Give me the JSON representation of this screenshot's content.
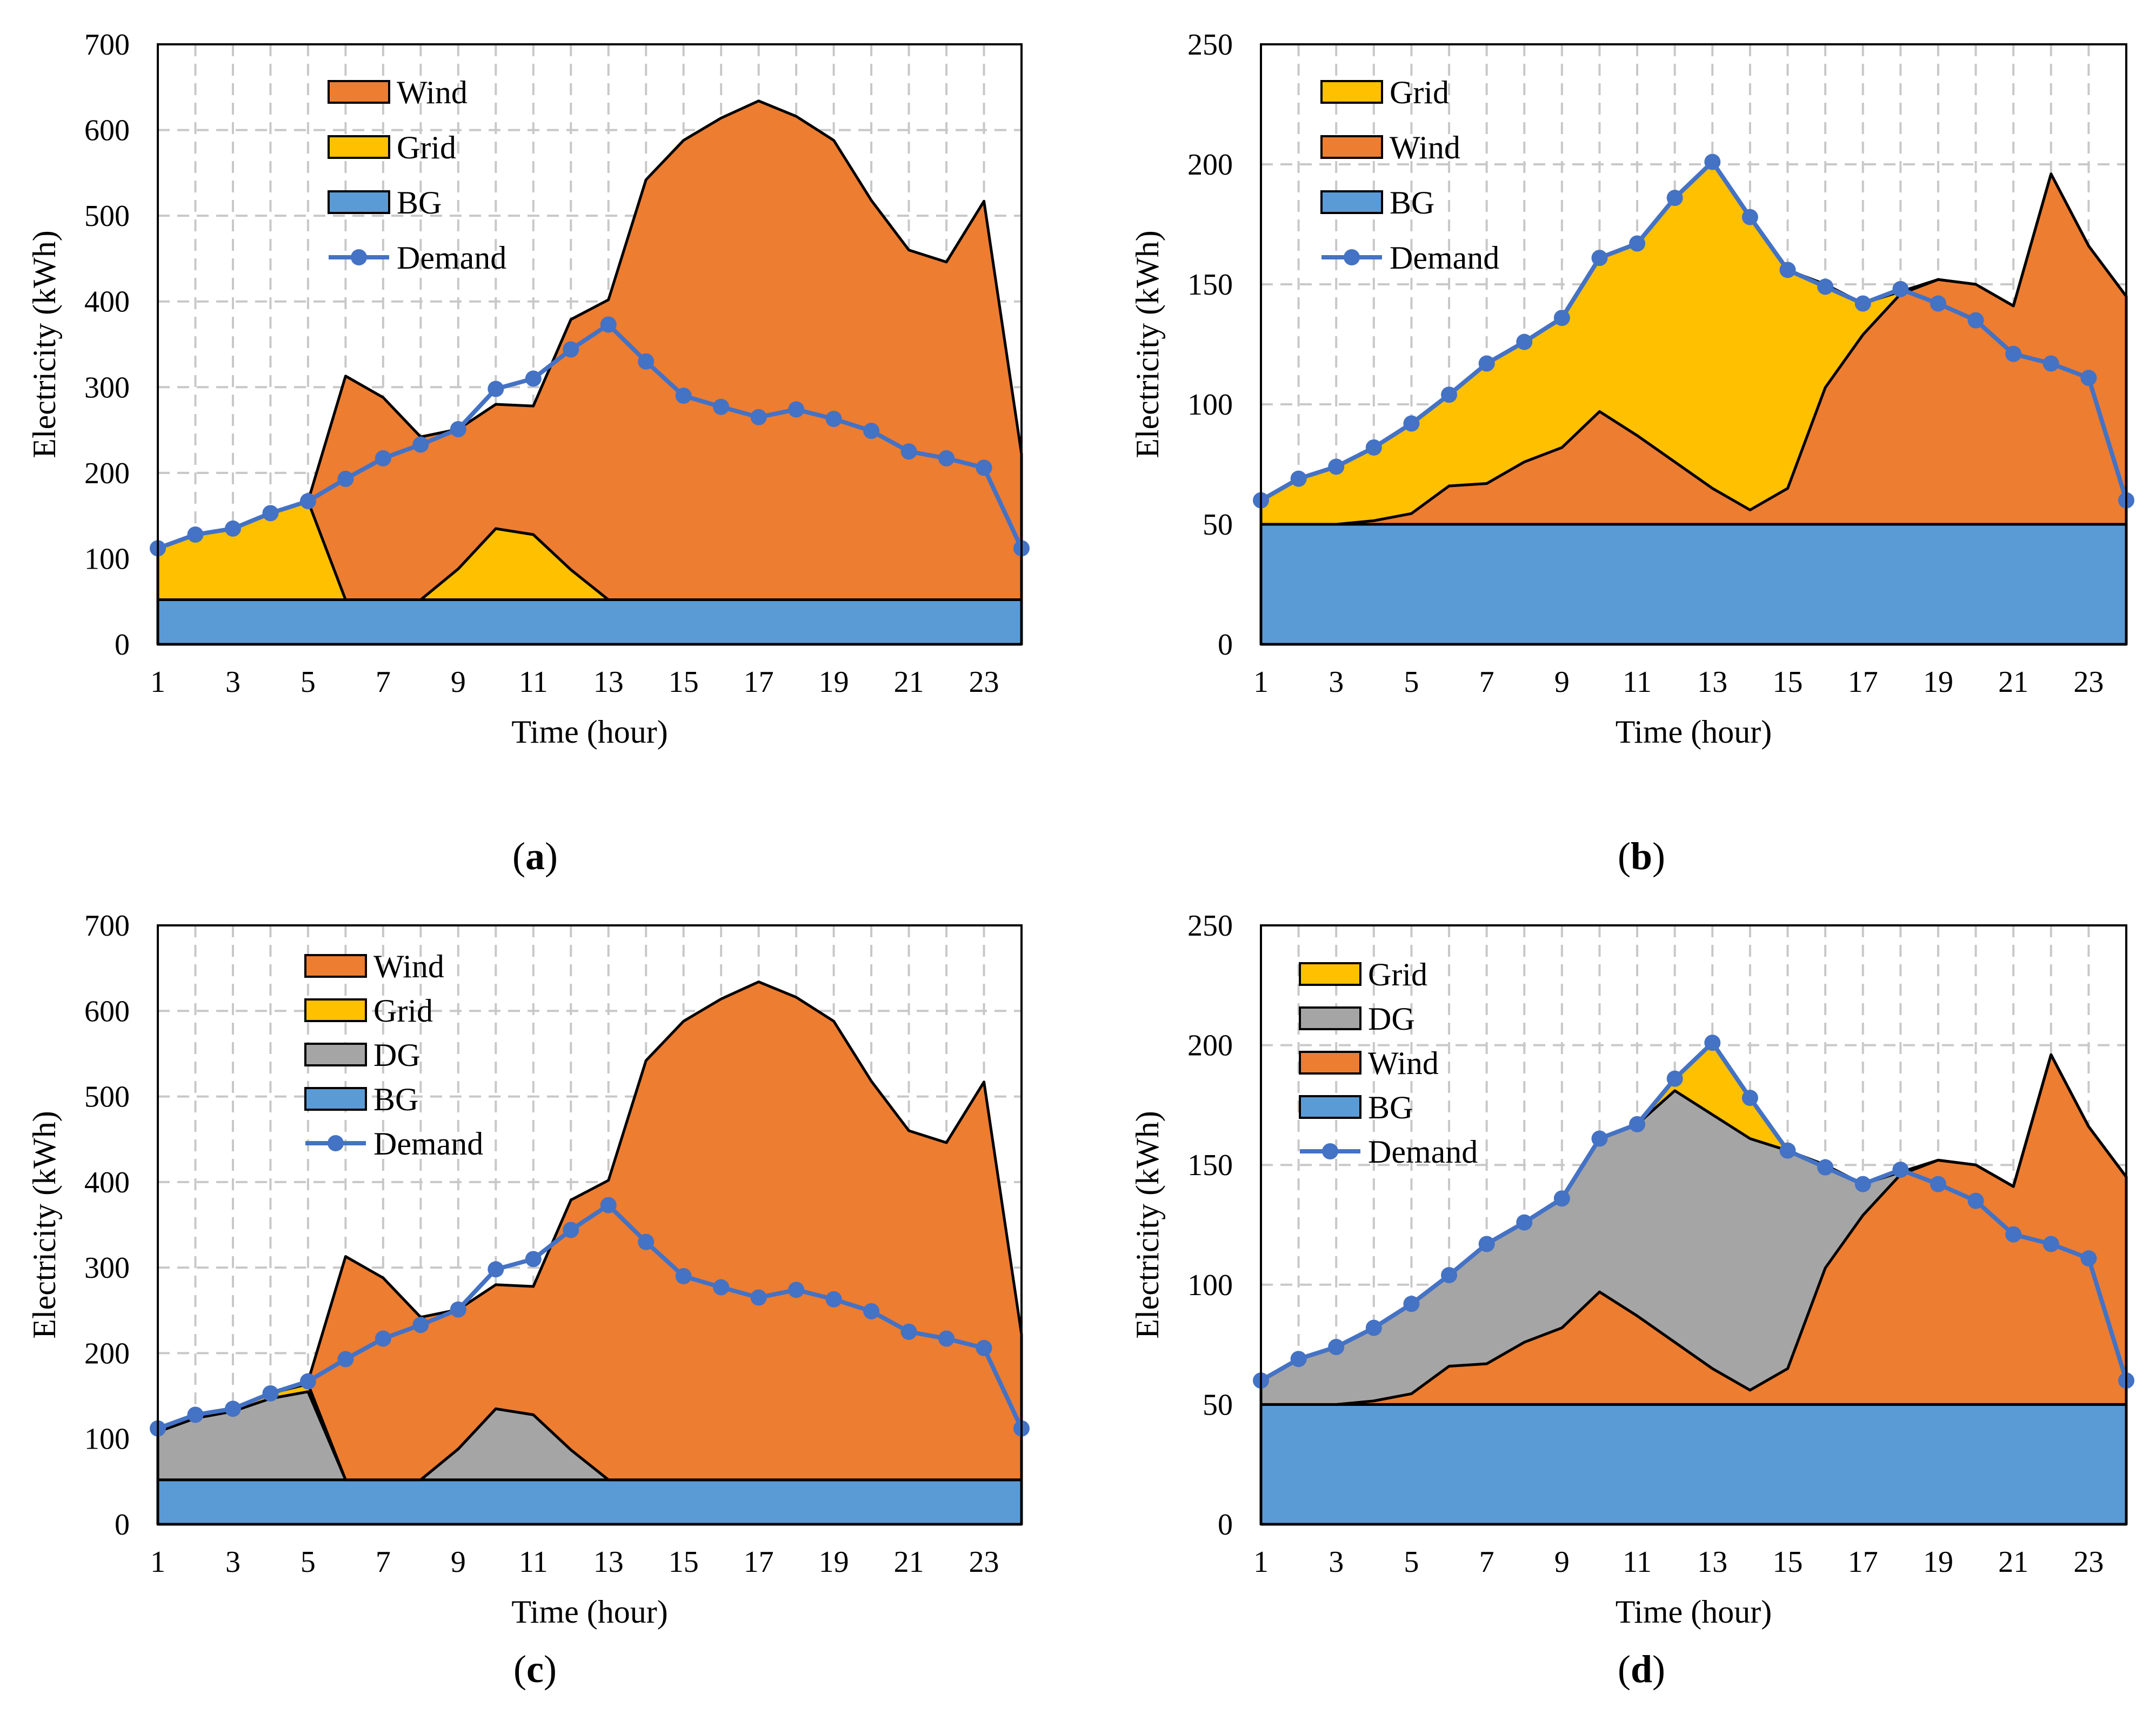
{
  "colors": {
    "Wind": "#ED7D31",
    "Grid": "#FFC000",
    "BG": "#5B9BD5",
    "DG": "#A5A5A5",
    "Demand": "#4472C4"
  },
  "chart_data": [
    {
      "id": "a",
      "label": "a",
      "type": "area",
      "stacked": true,
      "xlabel": "Time (hour)",
      "ylabel": "Electricity (kWh)",
      "xlim": [
        1,
        24
      ],
      "ylim": [
        0,
        700
      ],
      "xticks": [
        "1",
        "3",
        "5",
        "7",
        "9",
        "11",
        "13",
        "15",
        "17",
        "19",
        "21",
        "23"
      ],
      "yticks": [
        "0",
        "100",
        "200",
        "300",
        "400",
        "500",
        "600",
        "700"
      ],
      "grid": true,
      "legend_position": "top-left",
      "legend": [
        "Wind",
        "Grid",
        "BG",
        "Demand"
      ],
      "x": [
        1,
        2,
        3,
        4,
        5,
        6,
        7,
        8,
        9,
        10,
        11,
        12,
        13,
        14,
        15,
        16,
        17,
        18,
        19,
        20,
        21,
        22,
        23,
        24
      ],
      "stack_order": [
        "BG",
        "Grid",
        "Wind"
      ],
      "series": [
        {
          "name": "BG",
          "values": [
            52,
            52,
            52,
            52,
            52,
            52,
            52,
            52,
            52,
            52,
            52,
            52,
            52,
            52,
            52,
            52,
            52,
            52,
            52,
            52,
            52,
            52,
            52,
            52
          ]
        },
        {
          "name": "Grid",
          "values": [
            60,
            75,
            83,
            101,
            115,
            0,
            0,
            0,
            36,
            83,
            76,
            35,
            0,
            0,
            0,
            0,
            0,
            0,
            0,
            0,
            0,
            0,
            0,
            0
          ]
        },
        {
          "name": "Wind",
          "values": [
            0,
            0,
            0,
            0,
            0,
            261,
            236,
            190,
            163,
            145,
            150,
            292,
            350,
            490,
            536,
            562,
            582,
            564,
            536,
            466,
            408,
            394,
            465,
            170
          ]
        },
        {
          "name": "Demand",
          "kind": "line",
          "values": [
            112,
            128,
            135,
            153,
            167,
            193,
            217,
            233,
            251,
            298,
            310,
            344,
            373,
            330,
            290,
            277,
            265,
            274,
            263,
            249,
            225,
            217,
            206,
            112
          ]
        }
      ]
    },
    {
      "id": "b",
      "label": "b",
      "type": "area",
      "stacked": true,
      "xlabel": "Time (hour)",
      "ylabel": "Electricity (kWh)",
      "xlim": [
        1,
        24
      ],
      "ylim": [
        0,
        250
      ],
      "xticks": [
        "1",
        "3",
        "5",
        "7",
        "9",
        "11",
        "13",
        "15",
        "17",
        "19",
        "21",
        "23"
      ],
      "yticks": [
        "0",
        "50",
        "100",
        "150",
        "200",
        "250"
      ],
      "grid": true,
      "legend_position": "top-left",
      "legend": [
        "Grid",
        "Wind",
        "BG",
        "Demand"
      ],
      "x": [
        1,
        2,
        3,
        4,
        5,
        6,
        7,
        8,
        9,
        10,
        11,
        12,
        13,
        14,
        15,
        16,
        17,
        18,
        19,
        20,
        21,
        22,
        23,
        24
      ],
      "stack_order": [
        "BG",
        "Wind",
        "Grid"
      ],
      "series": [
        {
          "name": "BG",
          "values": [
            50,
            50,
            50,
            50,
            50,
            50,
            50,
            50,
            50,
            50,
            50,
            50,
            50,
            50,
            50,
            50,
            50,
            50,
            50,
            50,
            50,
            50,
            50,
            50
          ]
        },
        {
          "name": "Wind",
          "values": [
            0,
            0,
            0,
            1.5,
            4.5,
            16,
            17,
            26,
            32,
            47,
            37,
            26,
            15,
            6,
            15,
            57,
            79,
            96,
            102,
            100,
            91,
            146,
            116,
            95
          ]
        },
        {
          "name": "Grid",
          "values": [
            10,
            19,
            24,
            30.5,
            37.5,
            38,
            50,
            50,
            53.5,
            64,
            80,
            110,
            136,
            122,
            91,
            43,
            13,
            1,
            0,
            0,
            0,
            0,
            0,
            0
          ]
        },
        {
          "name": "Demand",
          "kind": "line",
          "values": [
            60,
            69,
            74,
            82,
            92,
            104,
            117,
            126,
            136,
            161,
            167,
            186,
            201,
            178,
            156,
            149,
            142,
            148,
            142,
            135,
            121,
            117,
            111,
            60
          ]
        }
      ]
    },
    {
      "id": "c",
      "label": "c",
      "type": "area",
      "stacked": true,
      "xlabel": "Time (hour)",
      "ylabel": "Electricity (kWh)",
      "xlim": [
        1,
        24
      ],
      "ylim": [
        0,
        700
      ],
      "xticks": [
        "1",
        "3",
        "5",
        "7",
        "9",
        "11",
        "13",
        "15",
        "17",
        "19",
        "21",
        "23"
      ],
      "yticks": [
        "0",
        "100",
        "200",
        "300",
        "400",
        "500",
        "600",
        "700"
      ],
      "grid": true,
      "legend_position": "top-left",
      "legend": [
        "Wind",
        "Grid",
        "DG",
        "BG",
        "Demand"
      ],
      "x": [
        1,
        2,
        3,
        4,
        5,
        6,
        7,
        8,
        9,
        10,
        11,
        12,
        13,
        14,
        15,
        16,
        17,
        18,
        19,
        20,
        21,
        22,
        23,
        24
      ],
      "stack_order": [
        "BG",
        "DG",
        "Grid",
        "Wind"
      ],
      "series": [
        {
          "name": "BG",
          "values": [
            52,
            52,
            52,
            52,
            52,
            52,
            52,
            52,
            52,
            52,
            52,
            52,
            52,
            52,
            52,
            52,
            52,
            52,
            52,
            52,
            52,
            52,
            52,
            52
          ]
        },
        {
          "name": "DG",
          "values": [
            56,
            72,
            80,
            95,
            103,
            0,
            0,
            0,
            36,
            83,
            76,
            35,
            0,
            0,
            0,
            0,
            0,
            0,
            0,
            0,
            0,
            0,
            0,
            0
          ]
        },
        {
          "name": "Grid",
          "values": [
            4,
            3,
            3,
            6,
            9,
            0,
            0,
            0,
            0,
            0,
            0,
            0,
            0,
            0,
            0,
            0,
            0,
            0,
            0,
            0,
            0,
            0,
            0,
            0
          ]
        },
        {
          "name": "Wind",
          "values": [
            0,
            0,
            0,
            0,
            3,
            261,
            236,
            190,
            163,
            145,
            150,
            292,
            350,
            490,
            536,
            562,
            582,
            564,
            536,
            466,
            408,
            394,
            465,
            170
          ]
        },
        {
          "name": "Demand",
          "kind": "line",
          "values": [
            112,
            128,
            135,
            153,
            167,
            193,
            217,
            233,
            251,
            298,
            310,
            344,
            373,
            330,
            290,
            277,
            265,
            274,
            263,
            249,
            225,
            217,
            206,
            112
          ]
        }
      ]
    },
    {
      "id": "d",
      "label": "d",
      "type": "area",
      "stacked": true,
      "xlabel": "Time (hour)",
      "ylabel": "Electricity (kWh)",
      "xlim": [
        1,
        24
      ],
      "ylim": [
        0,
        250
      ],
      "xticks": [
        "1",
        "3",
        "5",
        "7",
        "9",
        "11",
        "13",
        "15",
        "17",
        "19",
        "21",
        "23"
      ],
      "yticks": [
        "0",
        "50",
        "100",
        "150",
        "200",
        "250"
      ],
      "grid": true,
      "legend_position": "top-left",
      "legend": [
        "Grid",
        "DG",
        "Wind",
        "BG",
        "Demand"
      ],
      "x": [
        1,
        2,
        3,
        4,
        5,
        6,
        7,
        8,
        9,
        10,
        11,
        12,
        13,
        14,
        15,
        16,
        17,
        18,
        19,
        20,
        21,
        22,
        23,
        24
      ],
      "stack_order": [
        "BG",
        "Wind",
        "DG",
        "Grid"
      ],
      "series": [
        {
          "name": "BG",
          "values": [
            50,
            50,
            50,
            50,
            50,
            50,
            50,
            50,
            50,
            50,
            50,
            50,
            50,
            50,
            50,
            50,
            50,
            50,
            50,
            50,
            50,
            50,
            50,
            50
          ]
        },
        {
          "name": "Wind",
          "values": [
            0,
            0,
            0,
            1.5,
            4.5,
            16,
            17,
            26,
            32,
            47,
            37,
            26,
            15,
            6,
            15,
            57,
            79,
            96,
            102,
            100,
            91,
            146,
            116,
            95
          ]
        },
        {
          "name": "DG",
          "values": [
            10,
            19,
            24,
            30.5,
            37.5,
            38,
            50,
            50,
            53.5,
            64,
            80,
            105,
            106,
            105,
            91,
            43,
            13,
            1,
            0,
            0,
            0,
            0,
            0,
            0
          ]
        },
        {
          "name": "Grid",
          "values": [
            0,
            0,
            0,
            0,
            0,
            0,
            0,
            0,
            0,
            0,
            0,
            5,
            30,
            17,
            0,
            0,
            0,
            0,
            0,
            0,
            0,
            0,
            0,
            0
          ]
        },
        {
          "name": "Demand",
          "kind": "line",
          "values": [
            60,
            69,
            74,
            82,
            92,
            104,
            117,
            126,
            136,
            161,
            167,
            186,
            201,
            178,
            156,
            149,
            142,
            148,
            142,
            135,
            121,
            117,
            111,
            60
          ]
        }
      ]
    }
  ]
}
